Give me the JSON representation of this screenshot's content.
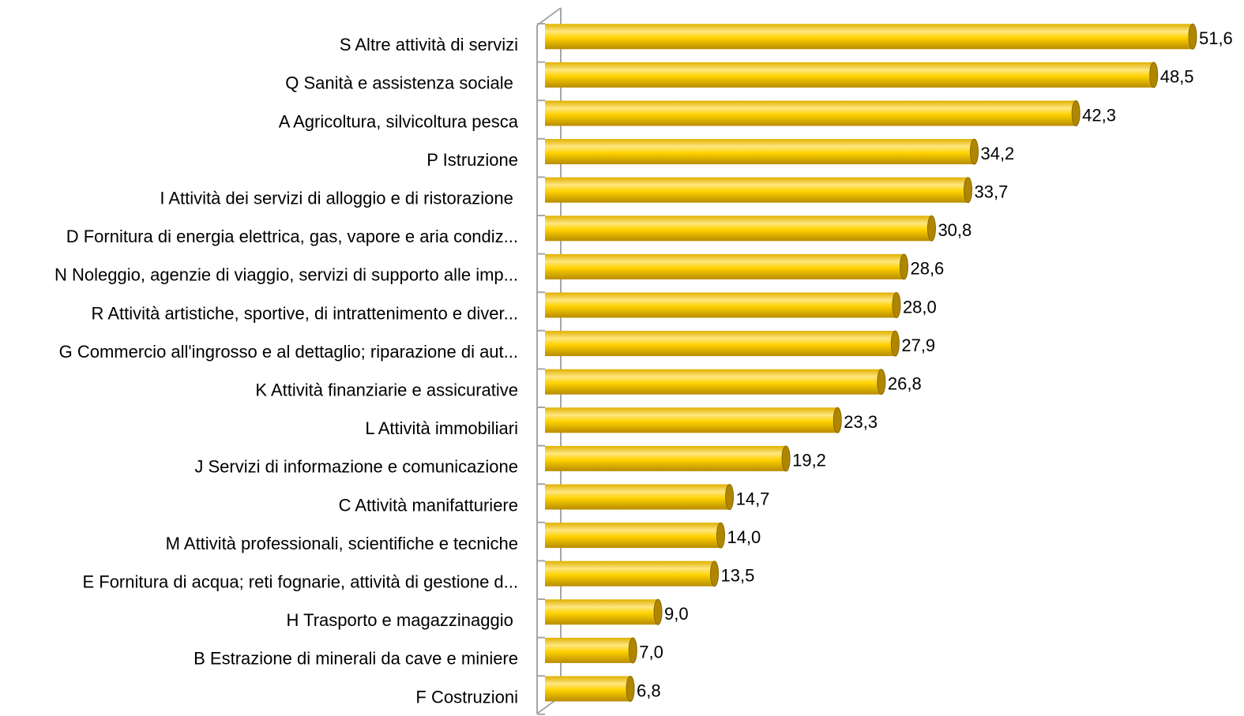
{
  "chart_data": {
    "type": "barh",
    "categories": [
      "S Altre attività di servizi",
      "Q Sanità e assistenza sociale ",
      "A Agricoltura, silvicoltura pesca",
      "P Istruzione",
      "I Attività dei servizi di alloggio e di ristorazione ",
      "D Fornitura di energia elettrica, gas, vapore e aria condiz...",
      "N Noleggio, agenzie di viaggio, servizi di supporto alle imp...",
      "R Attività artistiche, sportive, di intrattenimento e diver...",
      "G Commercio all'ingrosso e al dettaglio; riparazione di aut...",
      "K Attività finanziarie e assicurative",
      "L Attività immobiliari",
      "J Servizi di informazione e comunicazione",
      "C Attività manifatturiere",
      "M Attività professionali, scientifiche e tecniche",
      "E Fornitura di acqua; reti fognarie, attività di gestione d...",
      "H Trasporto e magazzinaggio ",
      "B Estrazione di minerali da cave e miniere",
      "F Costruzioni"
    ],
    "values": [
      51.6,
      48.5,
      42.3,
      34.2,
      33.7,
      30.8,
      28.6,
      28.0,
      27.9,
      26.8,
      23.3,
      19.2,
      14.7,
      14.0,
      13.5,
      9.0,
      7.0,
      6.8
    ],
    "value_labels": [
      "51,6",
      "48,5",
      "42,3",
      "34,2",
      "33,7",
      "30,8",
      "28,6",
      "28,0",
      "27,9",
      "26,8",
      "23,3",
      "19,2",
      "14,7",
      "14,0",
      "13,5",
      "9,0",
      "7,0",
      "6,8"
    ],
    "color": "#ffd200",
    "xlim": [
      0,
      55
    ]
  }
}
